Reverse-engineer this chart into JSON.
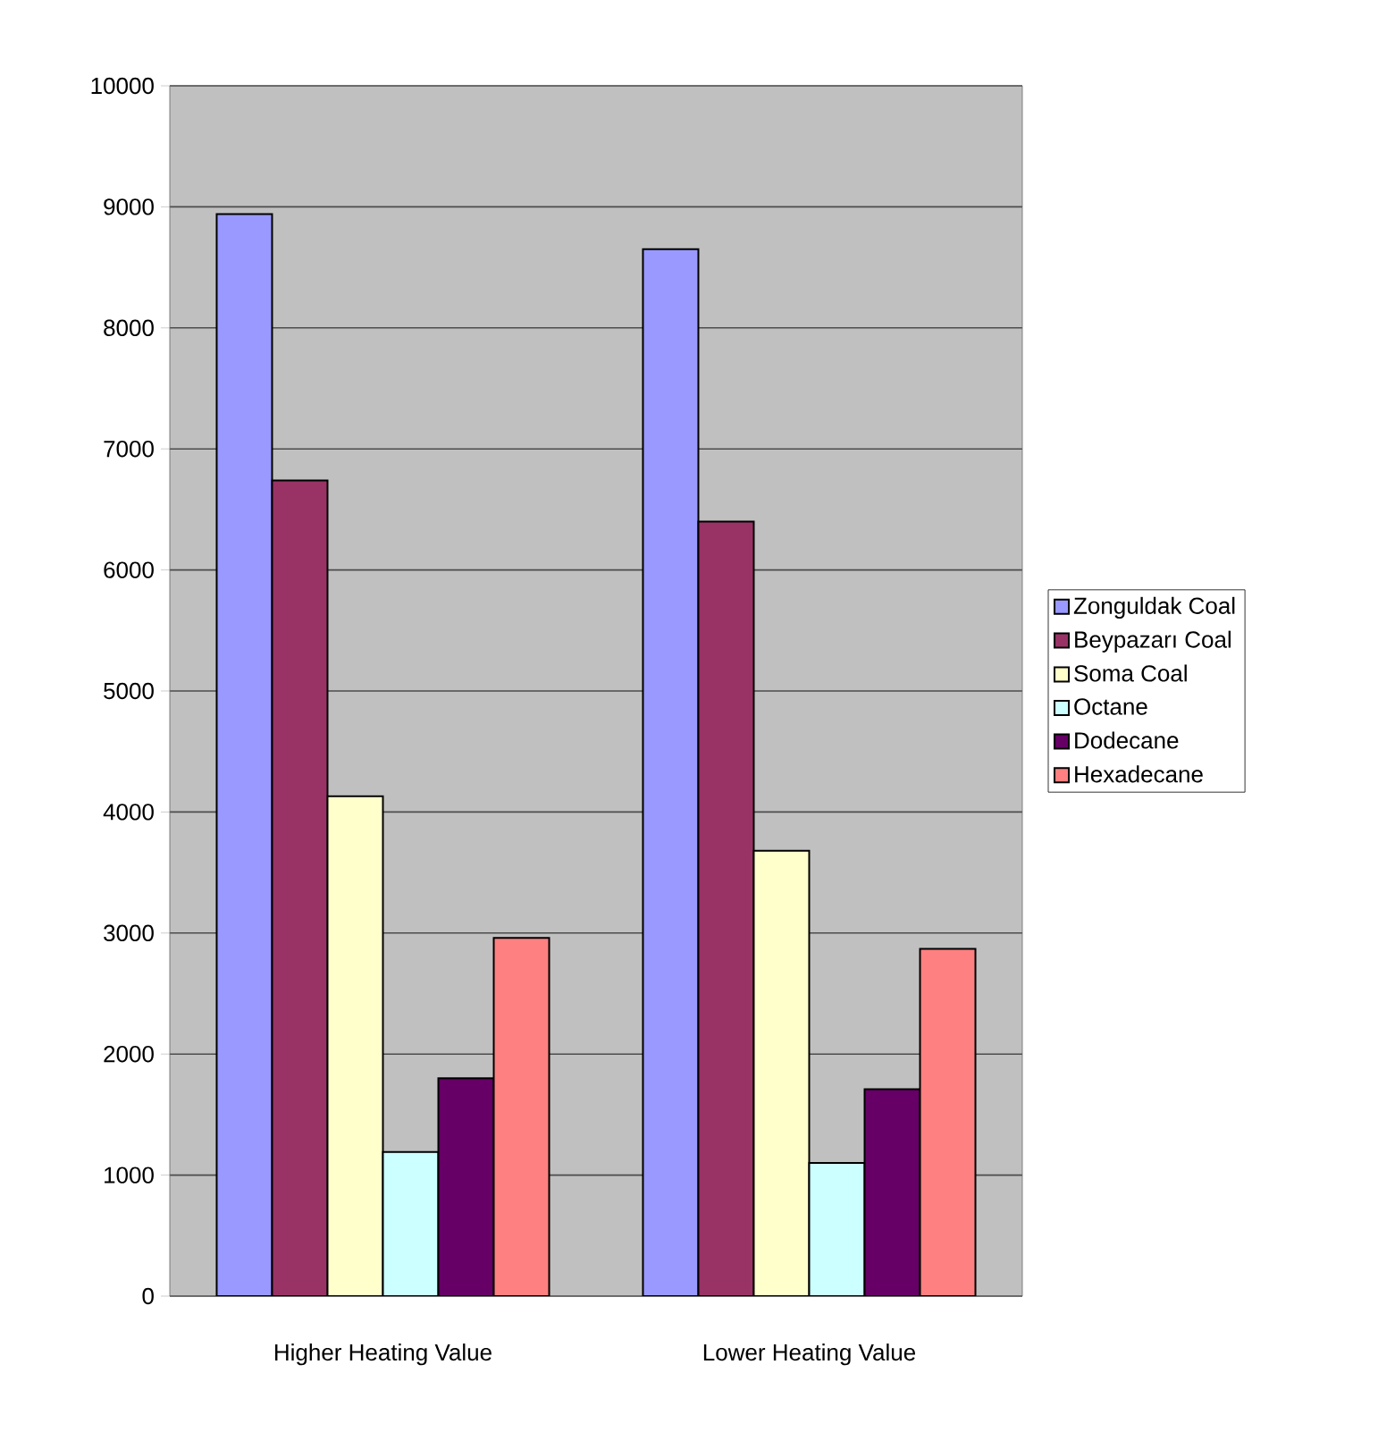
{
  "chart_data": {
    "type": "bar",
    "categories": [
      "Higher Heating Value",
      "Lower Heating Value"
    ],
    "series": [
      {
        "name": "Zonguldak Coal",
        "color": "#9999ff",
        "values": [
          8940,
          8650
        ]
      },
      {
        "name": "Beypazarı Coal",
        "color": "#993366",
        "values": [
          6740,
          6400
        ]
      },
      {
        "name": "Soma Coal",
        "color": "#ffffcc",
        "values": [
          4130,
          3680
        ]
      },
      {
        "name": "Octane",
        "color": "#ccffff",
        "values": [
          1190,
          1100
        ]
      },
      {
        "name": "Dodecane",
        "color": "#660066",
        "values": [
          1800,
          1710
        ]
      },
      {
        "name": "Hexadecane",
        "color": "#ff8080",
        "values": [
          2960,
          2870
        ]
      }
    ],
    "ylim": [
      0,
      10000
    ],
    "yticks": [
      0,
      1000,
      2000,
      3000,
      4000,
      5000,
      6000,
      7000,
      8000,
      9000,
      10000
    ],
    "grid": "y",
    "legend": "right"
  }
}
